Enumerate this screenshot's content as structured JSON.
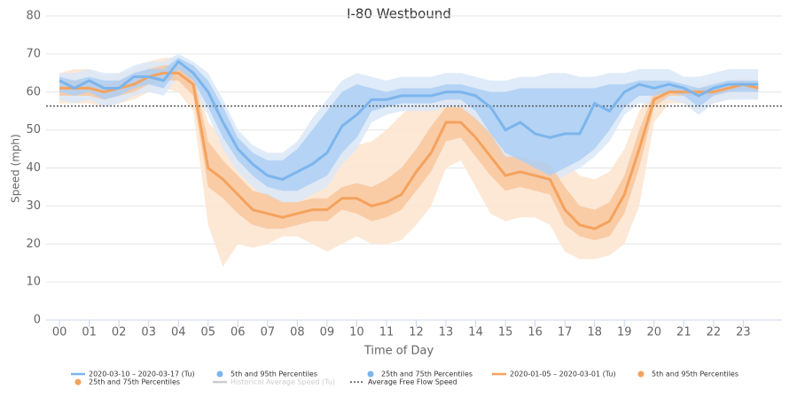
{
  "chart_data": {
    "type": "line",
    "title": "I-80 Westbound",
    "x_label": "Time of Day",
    "y_label": "Speed (mph)",
    "x": [
      0,
      0.5,
      1,
      1.5,
      2,
      2.5,
      3,
      3.5,
      4,
      4.5,
      5,
      5.5,
      6,
      6.5,
      7,
      7.5,
      8,
      8.5,
      9,
      9.5,
      10,
      10.5,
      11,
      11.5,
      12,
      12.5,
      13,
      13.5,
      14,
      14.5,
      15,
      15.5,
      16,
      16.5,
      17,
      17.5,
      18,
      18.5,
      19,
      19.5,
      20,
      20.5,
      21,
      21.5,
      22,
      22.5,
      23,
      23.5
    ],
    "series": [
      {
        "name": "2020-03-10 – 2020-03-17 (Tu)",
        "color": "#7cb5ec",
        "type": "line",
        "values": [
          63,
          61,
          63,
          61,
          61,
          64,
          64,
          63,
          68,
          65,
          60,
          52,
          45,
          41,
          38,
          37,
          39,
          41,
          44,
          51,
          54,
          58,
          58,
          59,
          59,
          59,
          60,
          60,
          59,
          56,
          50,
          52,
          49,
          48,
          49,
          49,
          57,
          55,
          60,
          62,
          61,
          62,
          61,
          59,
          61,
          62,
          62,
          62
        ]
      },
      {
        "name": "5th and 95th Percentiles",
        "color": "#d9e8f8",
        "type": "band",
        "high": [
          65,
          65,
          66,
          65,
          65,
          67,
          68,
          68,
          70,
          68,
          65,
          58,
          50,
          46,
          44,
          44,
          47,
          53,
          58,
          63,
          65,
          64,
          63,
          64,
          64,
          64,
          65,
          65,
          64,
          63,
          63,
          64,
          64,
          65,
          65,
          64,
          64,
          65,
          65,
          66,
          66,
          66,
          64,
          64,
          65,
          66,
          66,
          66
        ],
        "low": [
          58,
          57,
          58,
          56,
          57,
          59,
          60,
          59,
          64,
          61,
          54,
          45,
          39,
          35,
          32,
          31,
          31,
          33,
          35,
          41,
          45,
          52,
          54,
          55,
          55,
          55,
          56,
          56,
          52,
          46,
          40,
          38,
          37,
          36,
          38,
          40,
          43,
          47,
          54,
          57,
          57,
          58,
          57,
          54,
          57,
          58,
          58,
          58
        ]
      },
      {
        "name": "25th and 75th Percentiles",
        "color": "#aecff3",
        "type": "band",
        "high": [
          64,
          63,
          64,
          63,
          63,
          65,
          66,
          66,
          69,
          67,
          63,
          56,
          48,
          44,
          42,
          42,
          45,
          50,
          55,
          60,
          62,
          61,
          60,
          61,
          61,
          61,
          62,
          62,
          61,
          60,
          60,
          61,
          61,
          61,
          61,
          61,
          61,
          62,
          62,
          63,
          63,
          63,
          62,
          61,
          62,
          63,
          63,
          63
        ],
        "low": [
          60,
          59,
          60,
          58,
          59,
          61,
          62,
          61,
          66,
          63,
          56,
          48,
          42,
          38,
          35,
          34,
          34,
          36,
          38,
          44,
          48,
          55,
          56,
          57,
          57,
          57,
          58,
          58,
          55,
          49,
          44,
          42,
          40,
          38,
          40,
          42,
          45,
          50,
          56,
          59,
          59,
          60,
          59,
          56,
          59,
          60,
          60,
          60
        ]
      },
      {
        "name": "2020-01-05 – 2020-03-01 (Tu)",
        "color": "#f5a25d",
        "type": "line",
        "values": [
          61,
          61,
          61,
          60,
          61,
          62,
          64,
          65,
          65,
          62,
          40,
          37,
          33,
          29,
          28,
          27,
          28,
          29,
          29,
          32,
          32,
          30,
          31,
          33,
          39,
          44,
          52,
          52,
          48,
          43,
          38,
          39,
          38,
          37,
          29,
          25,
          24,
          26,
          33,
          45,
          58,
          60,
          60,
          60,
          60,
          61,
          62,
          61
        ]
      },
      {
        "name": "5th and 95th Percentiles",
        "color": "#fde4cf",
        "type": "band",
        "high": [
          65,
          66,
          66,
          64,
          65,
          66,
          68,
          69,
          69,
          67,
          52,
          48,
          44,
          40,
          39,
          38,
          39,
          40,
          42,
          45,
          46,
          47,
          50,
          54,
          57,
          58,
          60,
          60,
          58,
          55,
          50,
          49,
          48,
          47,
          42,
          38,
          37,
          39,
          45,
          55,
          61,
          62,
          62,
          62,
          63,
          63,
          64,
          63
        ],
        "low": [
          57,
          57,
          57,
          56,
          57,
          58,
          60,
          61,
          60,
          55,
          25,
          14,
          20,
          19,
          20,
          22,
          22,
          20,
          18,
          20,
          22,
          20,
          20,
          21,
          25,
          30,
          40,
          42,
          35,
          28,
          26,
          27,
          27,
          25,
          18,
          16,
          16,
          17,
          20,
          30,
          52,
          57,
          57,
          57,
          57,
          58,
          59,
          58
        ]
      },
      {
        "name": "25th and 75th Percentiles",
        "color": "#f8c79d",
        "type": "band",
        "high": [
          63,
          63,
          63,
          62,
          63,
          64,
          66,
          67,
          67,
          65,
          47,
          42,
          38,
          34,
          33,
          31,
          31,
          32,
          32,
          35,
          36,
          35,
          37,
          40,
          45,
          51,
          56,
          56,
          53,
          49,
          43,
          43,
          42,
          41,
          35,
          30,
          29,
          31,
          38,
          50,
          60,
          61,
          61,
          61,
          61,
          62,
          63,
          62
        ],
        "low": [
          59,
          59,
          59,
          58,
          59,
          60,
          62,
          63,
          63,
          59,
          35,
          32,
          28,
          25,
          24,
          24,
          25,
          26,
          26,
          29,
          28,
          26,
          27,
          29,
          34,
          39,
          47,
          48,
          43,
          38,
          34,
          35,
          34,
          33,
          25,
          22,
          21,
          22,
          28,
          40,
          56,
          59,
          59,
          59,
          59,
          60,
          61,
          60
        ]
      }
    ],
    "hidden_series": {
      "name": "Historical Average Speed  (Tu)",
      "color": "#cccccc"
    },
    "free_flow": {
      "name": "Average Free Flow Speed",
      "color": "#555555",
      "value": 56.3
    },
    "xlim": [
      -0.45,
      24.3
    ],
    "xticks": [
      {
        "value": 0,
        "label": "00"
      },
      {
        "value": 1,
        "label": "01"
      },
      {
        "value": 2,
        "label": "02"
      },
      {
        "value": 3,
        "label": "03"
      },
      {
        "value": 4,
        "label": "04"
      },
      {
        "value": 5,
        "label": "05"
      },
      {
        "value": 6,
        "label": "06"
      },
      {
        "value": 7,
        "label": "07"
      },
      {
        "value": 8,
        "label": "08"
      },
      {
        "value": 9,
        "label": "09"
      },
      10,
      11,
      12,
      13,
      14,
      15,
      16,
      17,
      18,
      19,
      20,
      21,
      22,
      23
    ],
    "ylim": [
      0,
      80
    ],
    "yticks": [
      0,
      10,
      20,
      30,
      40,
      50,
      60,
      70,
      80
    ],
    "grid": true
  }
}
